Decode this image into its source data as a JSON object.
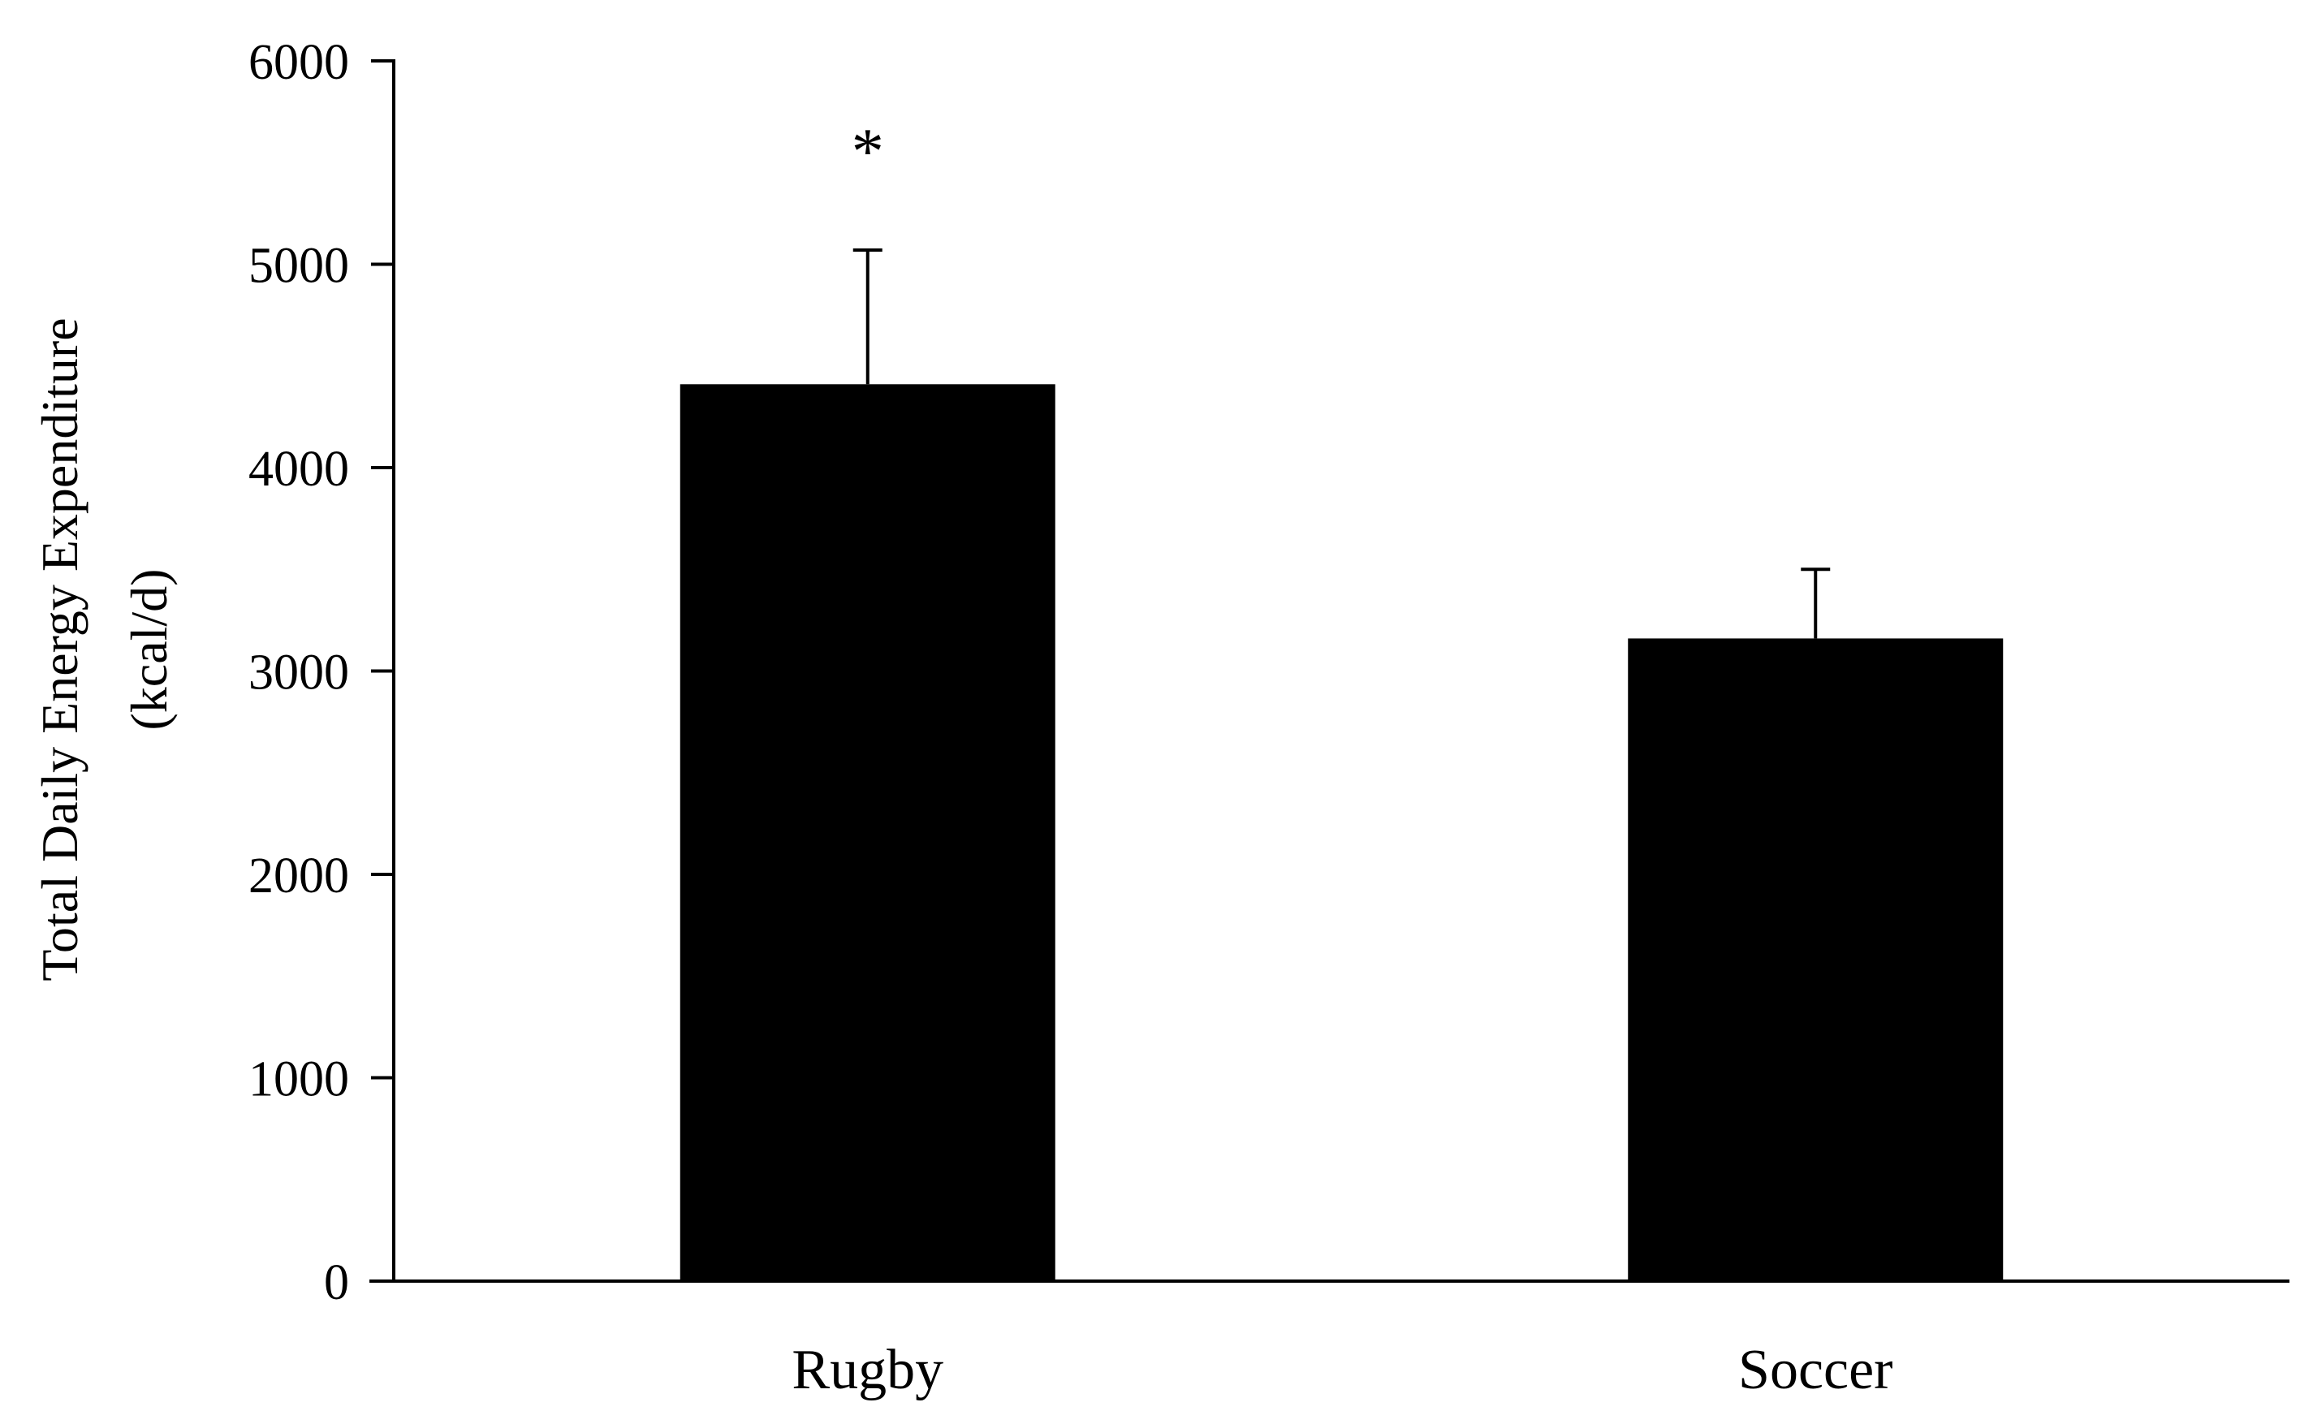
{
  "chart_data": {
    "type": "bar",
    "categories": [
      "Rugby",
      "Soccer"
    ],
    "values": [
      4410,
      3160
    ],
    "error": [
      660,
      340
    ],
    "annotations": [
      "*",
      ""
    ],
    "ylabel_lines": [
      "Total Daily Energy Expenditure",
      "(kcal/d)"
    ],
    "xlabel": "",
    "ylim": [
      0,
      6000
    ],
    "yticks": [
      0,
      1000,
      2000,
      3000,
      4000,
      5000,
      6000
    ],
    "grid": false,
    "legend": "none",
    "bar_color": "#000000"
  }
}
